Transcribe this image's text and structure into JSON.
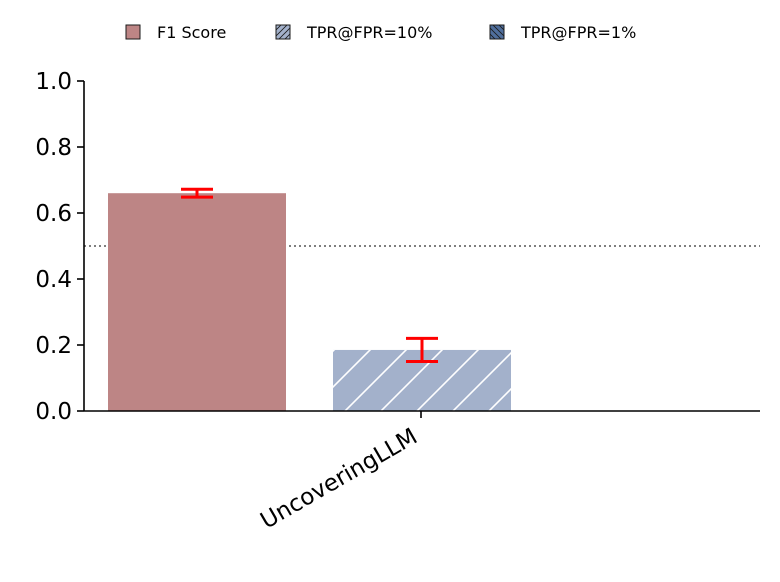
{
  "chart_data": {
    "type": "bar",
    "categories": [
      "UncoveringLLM"
    ],
    "series": [
      {
        "name": "F1 Score",
        "values": [
          0.66
        ],
        "error": [
          0.012
        ],
        "color": "#bd8585",
        "hatch": "none"
      },
      {
        "name": "TPR@FPR=10%",
        "values": [
          0.185
        ],
        "error": [
          0.035
        ],
        "color": "#a3b1cb",
        "hatch": "/"
      },
      {
        "name": "TPR@FPR=1%",
        "values": [
          0.0
        ],
        "error": null,
        "color": "#4f6e9c",
        "hatch": "\\"
      }
    ],
    "ylim": [
      0,
      1.0
    ],
    "yticks": [
      "0.0",
      "0.2",
      "0.4",
      "0.6",
      "0.8",
      "1.0"
    ],
    "reference_line": 0.5,
    "error_bar_color": "#ff0000",
    "legend_position": "top-center",
    "grid": false
  }
}
